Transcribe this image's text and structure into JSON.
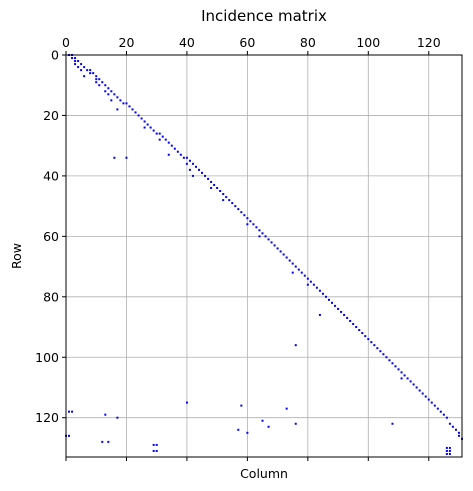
{
  "chart_data": {
    "type": "scatter",
    "title": "Incidence matrix",
    "xlabel": "Column",
    "ylabel": "Row",
    "xlim": [
      0,
      131
    ],
    "ylim": [
      133,
      0
    ],
    "x_ticks_top": [
      0,
      20,
      40,
      60,
      80,
      100,
      120
    ],
    "y_ticks": [
      0,
      20,
      40,
      60,
      80,
      100,
      120
    ],
    "grid": true,
    "marker_color": "#0000ff",
    "series": [
      {
        "points": [
          [
            1,
            0
          ],
          [
            2,
            0
          ],
          [
            2,
            1
          ],
          [
            3,
            1
          ],
          [
            3,
            2
          ],
          [
            3,
            3
          ],
          [
            4,
            2
          ],
          [
            4,
            4
          ],
          [
            5,
            3
          ],
          [
            5,
            5
          ],
          [
            6,
            4
          ],
          [
            6,
            7
          ],
          [
            7,
            5
          ],
          [
            8,
            5
          ],
          [
            8,
            6
          ],
          [
            9,
            6
          ],
          [
            10,
            7
          ],
          [
            10,
            8
          ],
          [
            10,
            9
          ],
          [
            11,
            8
          ],
          [
            11,
            10
          ],
          [
            12,
            9
          ],
          [
            13,
            10
          ],
          [
            13,
            12
          ],
          [
            14,
            11
          ],
          [
            14,
            13
          ],
          [
            15,
            12
          ],
          [
            15,
            15
          ],
          [
            16,
            13
          ],
          [
            17,
            14
          ],
          [
            17,
            18
          ],
          [
            18,
            15
          ],
          [
            19,
            16
          ],
          [
            20,
            16
          ],
          [
            21,
            17
          ],
          [
            22,
            18
          ],
          [
            23,
            19
          ],
          [
            24,
            20
          ],
          [
            25,
            21
          ],
          [
            26,
            22
          ],
          [
            26,
            24
          ],
          [
            27,
            23
          ],
          [
            28,
            24
          ],
          [
            29,
            25
          ],
          [
            30,
            26
          ],
          [
            31,
            26
          ],
          [
            31,
            28
          ],
          [
            32,
            27
          ],
          [
            33,
            28
          ],
          [
            34,
            29
          ],
          [
            34,
            33
          ],
          [
            35,
            30
          ],
          [
            36,
            31
          ],
          [
            37,
            32
          ],
          [
            38,
            33
          ],
          [
            39,
            34
          ],
          [
            40,
            34
          ],
          [
            40,
            36
          ],
          [
            41,
            35
          ],
          [
            41,
            38
          ],
          [
            42,
            36
          ],
          [
            42,
            40
          ],
          [
            43,
            37
          ],
          [
            44,
            38
          ],
          [
            45,
            39
          ],
          [
            46,
            40
          ],
          [
            47,
            41
          ],
          [
            48,
            42
          ],
          [
            48,
            44
          ],
          [
            49,
            43
          ],
          [
            50,
            44
          ],
          [
            51,
            45
          ],
          [
            52,
            46
          ],
          [
            52,
            48
          ],
          [
            53,
            47
          ],
          [
            54,
            48
          ],
          [
            55,
            49
          ],
          [
            56,
            50
          ],
          [
            57,
            51
          ],
          [
            58,
            52
          ],
          [
            59,
            53
          ],
          [
            60,
            54
          ],
          [
            60,
            56
          ],
          [
            61,
            55
          ],
          [
            62,
            56
          ],
          [
            63,
            57
          ],
          [
            64,
            58
          ],
          [
            64,
            60
          ],
          [
            65,
            59
          ],
          [
            66,
            60
          ],
          [
            67,
            61
          ],
          [
            68,
            62
          ],
          [
            69,
            63
          ],
          [
            70,
            64
          ],
          [
            71,
            65
          ],
          [
            72,
            66
          ],
          [
            73,
            67
          ],
          [
            74,
            68
          ],
          [
            75,
            69
          ],
          [
            75,
            72
          ],
          [
            76,
            70
          ],
          [
            77,
            71
          ],
          [
            78,
            72
          ],
          [
            79,
            73
          ],
          [
            80,
            74
          ],
          [
            80,
            76
          ],
          [
            81,
            75
          ],
          [
            82,
            76
          ],
          [
            83,
            77
          ],
          [
            84,
            78
          ],
          [
            85,
            79
          ],
          [
            86,
            80
          ],
          [
            87,
            81
          ],
          [
            88,
            82
          ],
          [
            89,
            83
          ],
          [
            90,
            84
          ],
          [
            91,
            85
          ],
          [
            92,
            86
          ],
          [
            93,
            87
          ],
          [
            94,
            88
          ],
          [
            95,
            89
          ],
          [
            96,
            90
          ],
          [
            97,
            91
          ],
          [
            98,
            92
          ],
          [
            99,
            93
          ],
          [
            100,
            94
          ],
          [
            101,
            95
          ],
          [
            102,
            96
          ],
          [
            103,
            97
          ],
          [
            104,
            98
          ],
          [
            105,
            99
          ],
          [
            106,
            100
          ],
          [
            107,
            101
          ],
          [
            108,
            102
          ],
          [
            109,
            103
          ],
          [
            110,
            104
          ],
          [
            111,
            105
          ],
          [
            111,
            107
          ],
          [
            112,
            106
          ],
          [
            113,
            107
          ],
          [
            114,
            108
          ],
          [
            115,
            109
          ],
          [
            116,
            110
          ],
          [
            117,
            111
          ],
          [
            118,
            112
          ],
          [
            119,
            113
          ],
          [
            120,
            114
          ],
          [
            121,
            115
          ],
          [
            122,
            116
          ],
          [
            123,
            117
          ],
          [
            124,
            118
          ],
          [
            125,
            119
          ],
          [
            126,
            120
          ],
          [
            127,
            122
          ],
          [
            128,
            123
          ],
          [
            129,
            124
          ],
          [
            130,
            125
          ],
          [
            131,
            127
          ],
          [
            16,
            34
          ],
          [
            20,
            34
          ],
          [
            84,
            86
          ],
          [
            76,
            96
          ],
          [
            40,
            115
          ],
          [
            58,
            116
          ],
          [
            73,
            117
          ],
          [
            1,
            118
          ],
          [
            2,
            118
          ],
          [
            13,
            119
          ],
          [
            17,
            120
          ],
          [
            65,
            121
          ],
          [
            108,
            122
          ],
          [
            76,
            122
          ],
          [
            67,
            123
          ],
          [
            57,
            124
          ],
          [
            60,
            125
          ],
          [
            0,
            126
          ],
          [
            1,
            126
          ],
          [
            130,
            126
          ],
          [
            12,
            128
          ],
          [
            14,
            128
          ],
          [
            29,
            129
          ],
          [
            30,
            129
          ],
          [
            29,
            131
          ],
          [
            30,
            131
          ],
          [
            126,
            130
          ],
          [
            127,
            130
          ],
          [
            126,
            131
          ],
          [
            127,
            131
          ],
          [
            126,
            132
          ],
          [
            127,
            132
          ]
        ]
      }
    ]
  }
}
